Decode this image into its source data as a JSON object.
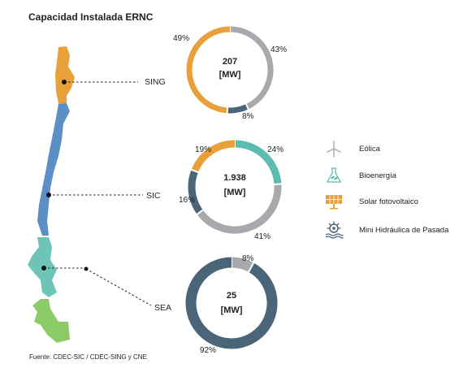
{
  "title": "Capacidad Instalada ERNC",
  "source": "Fuente: CDEC-SIC / CDEC-SING y CNE",
  "colors": {
    "eolica": "#A7A9AC",
    "bioenergia": "#5DBCB0",
    "solar": "#E8A13A",
    "mini_hidro": "#4A6478",
    "map_north": "#E8A13A",
    "map_central": "#5B8FC6",
    "map_south": "#6EC4B7",
    "map_far_south": "#8CCB65"
  },
  "chart_data": [
    {
      "type": "donut",
      "region": "SING",
      "center_value": "207",
      "center_unit": "[MW]",
      "series": [
        {
          "name": "Eólica",
          "value": 43
        },
        {
          "name": "Mini Hidráulica de Pasada",
          "value": 8
        },
        {
          "name": "Solar fotovoltaico",
          "value": 49
        }
      ],
      "labels": [
        "43%",
        "8%",
        "49%"
      ]
    },
    {
      "type": "donut",
      "region": "SIC",
      "center_value": "1.938",
      "center_unit": "[MW]",
      "series": [
        {
          "name": "Bioenergía",
          "value": 24
        },
        {
          "name": "Eólica",
          "value": 41
        },
        {
          "name": "Mini Hidráulica de Pasada",
          "value": 16
        },
        {
          "name": "Solar fotovoltaico",
          "value": 19
        }
      ],
      "labels": [
        "24%",
        "41%",
        "16%",
        "19%"
      ]
    },
    {
      "type": "donut",
      "region": "SEA",
      "center_value": "25",
      "center_unit": "[MW]",
      "series": [
        {
          "name": "Eólica",
          "value": 8
        },
        {
          "name": "Mini Hidráulica de Pasada",
          "value": 92
        }
      ],
      "labels": [
        "8%",
        "92%"
      ]
    }
  ],
  "legend": [
    {
      "label": "Eólica",
      "icon": "wind-turbine-icon",
      "color_key": "eolica"
    },
    {
      "label": "Bioenergía",
      "icon": "flask-leaf-icon",
      "color_key": "bioenergia"
    },
    {
      "label": "Solar fotovoltaico",
      "icon": "solar-panel-icon",
      "color_key": "solar"
    },
    {
      "label": "Mini Hidráulica de Pasada",
      "icon": "water-wheel-icon",
      "color_key": "mini_hidro"
    }
  ]
}
